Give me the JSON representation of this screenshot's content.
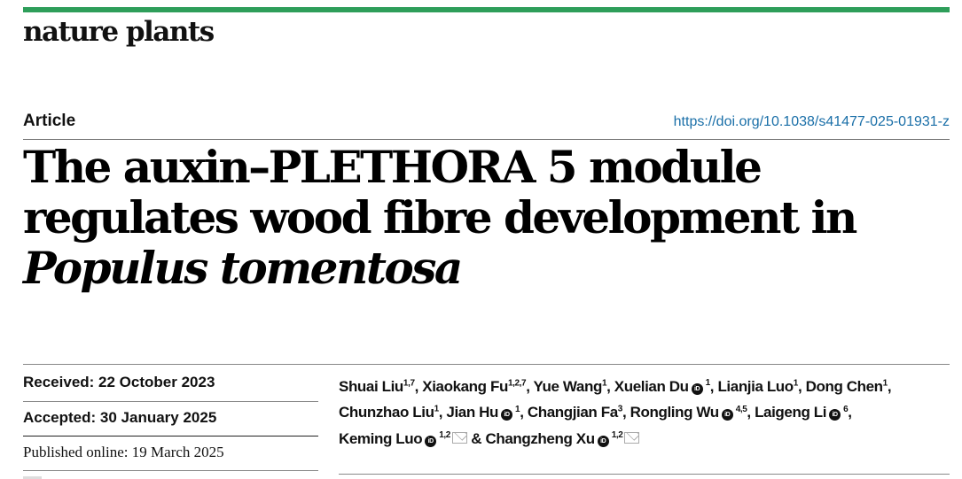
{
  "journal": {
    "name": "nature plants",
    "accent_color": "#2e9e5a"
  },
  "article": {
    "type": "Article",
    "doi": "https://doi.org/10.1038/s41477-025-01931-z",
    "title_plain": "The auxin–PLETHORA 5 module regulates wood fibre development in ",
    "title_italic": "Populus tomentosa"
  },
  "dates": {
    "received": "Received: 22 October 2023",
    "accepted": "Accepted: 30 January 2025",
    "published": "Published online: 19 March 2025"
  },
  "authors": [
    {
      "name": "Shuai Liu",
      "aff": "1,7",
      "orcid": false,
      "corresponding": false,
      "sep": ", "
    },
    {
      "name": "Xiaokang Fu",
      "aff": "1,2,7",
      "orcid": false,
      "corresponding": false,
      "sep": ", "
    },
    {
      "name": "Yue Wang",
      "aff": "1",
      "orcid": false,
      "corresponding": false,
      "sep": ", "
    },
    {
      "name": "Xuelian Du",
      "aff": "1",
      "orcid": true,
      "corresponding": false,
      "sep": ", "
    },
    {
      "name": "Lianjia Luo",
      "aff": "1",
      "orcid": false,
      "corresponding": false,
      "sep": ", "
    },
    {
      "name": "Dong Chen",
      "aff": "1",
      "orcid": false,
      "corresponding": false,
      "sep": ", "
    },
    {
      "name": "Chunzhao Liu",
      "aff": "1",
      "orcid": false,
      "corresponding": false,
      "sep": ", "
    },
    {
      "name": "Jian Hu",
      "aff": "1",
      "orcid": true,
      "corresponding": false,
      "sep": ", "
    },
    {
      "name": "Changjian Fa",
      "aff": "3",
      "orcid": false,
      "corresponding": false,
      "sep": ", "
    },
    {
      "name": "Rongling Wu",
      "aff": "4,5",
      "orcid": true,
      "corresponding": false,
      "sep": ", "
    },
    {
      "name": "Laigeng Li",
      "aff": "6",
      "orcid": true,
      "corresponding": false,
      "sep": ", "
    },
    {
      "name": "Keming Luo",
      "aff": "1,2",
      "orcid": true,
      "corresponding": true,
      "sep": " & "
    },
    {
      "name": "Changzheng Xu",
      "aff": "1,2",
      "orcid": true,
      "corresponding": true,
      "sep": ""
    }
  ],
  "icons": {
    "orcid": "orcid-icon",
    "corresponding": "envelope-icon"
  }
}
